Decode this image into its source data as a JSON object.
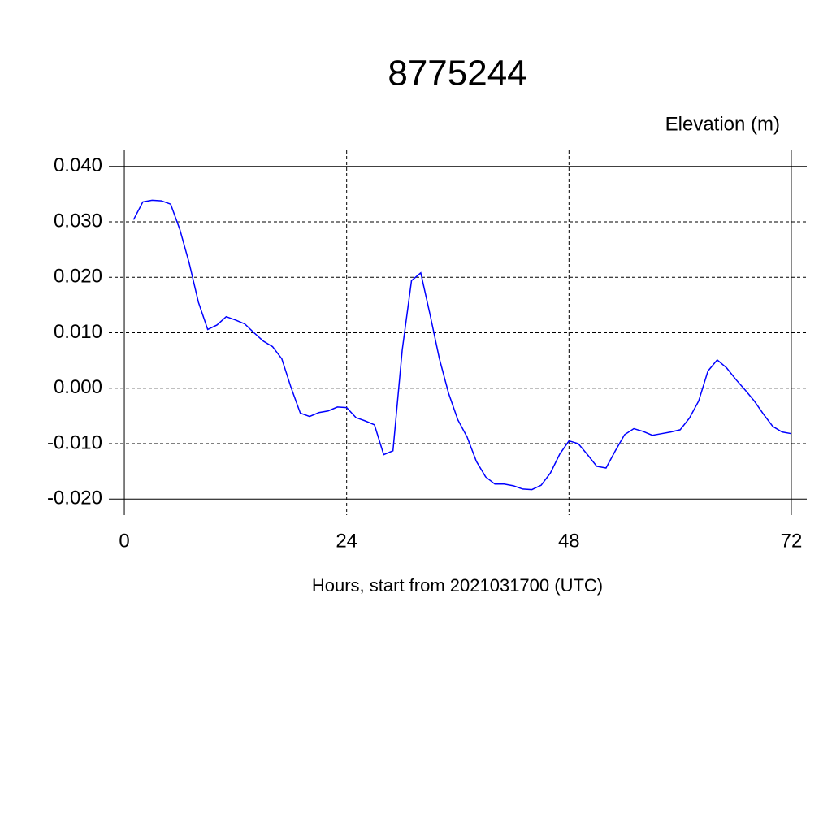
{
  "chart_data": {
    "type": "line",
    "title": "8775244",
    "ylabel": "Elevation (m)",
    "xlabel": "Hours, start from 2021031700 (UTC)",
    "x": [
      1,
      2,
      3,
      4,
      5,
      6,
      7,
      8,
      9,
      10,
      11,
      12,
      13,
      14,
      15,
      16,
      17,
      18,
      19,
      20,
      21,
      22,
      23,
      24,
      25,
      26,
      27,
      28,
      29,
      30,
      31,
      32,
      33,
      34,
      35,
      36,
      37,
      38,
      39,
      40,
      41,
      42,
      43,
      44,
      45,
      46,
      47,
      48,
      49,
      50,
      51,
      52,
      53,
      54,
      55,
      56,
      57,
      58,
      59,
      60,
      61,
      62,
      63,
      64,
      65,
      66,
      67,
      68,
      69,
      70,
      71,
      72
    ],
    "series": [
      {
        "name": "Elevation",
        "color": "#0000ff",
        "values": [
          0.0304,
          0.0336,
          0.0339,
          0.0338,
          0.0332,
          0.0286,
          0.0226,
          0.0155,
          0.0106,
          0.0114,
          0.0129,
          0.0123,
          0.0116,
          0.01,
          0.0085,
          0.0075,
          0.0053,
          0.0001,
          -0.0045,
          -0.0051,
          -0.0044,
          -0.0041,
          -0.0034,
          -0.0035,
          -0.0053,
          -0.0059,
          -0.0066,
          -0.012,
          -0.0113,
          0.0069,
          0.0194,
          0.0208,
          0.0133,
          0.0054,
          -0.0009,
          -0.0057,
          -0.0088,
          -0.0132,
          -0.016,
          -0.0173,
          -0.0173,
          -0.0176,
          -0.0182,
          -0.0183,
          -0.0175,
          -0.0153,
          -0.0119,
          -0.0095,
          -0.01,
          -0.012,
          -0.0141,
          -0.0144,
          -0.0113,
          -0.0084,
          -0.0073,
          -0.0078,
          -0.0085,
          -0.0082,
          -0.0079,
          -0.0075,
          -0.0054,
          -0.0023,
          0.0031,
          0.0051,
          0.0037,
          0.0016,
          -0.0003,
          -0.0023,
          -0.0047,
          -0.0069,
          -0.0079,
          -0.0082
        ]
      }
    ],
    "xlim": [
      -1.67,
      73.67
    ],
    "xticks": [
      0,
      24,
      48,
      72
    ],
    "ylim": [
      -0.0229,
      0.0429
    ],
    "yticks": [
      {
        "value": -0.02,
        "label": "-0.020"
      },
      {
        "value": -0.01,
        "label": "-0.010"
      },
      {
        "value": 0,
        "label": "0.000"
      },
      {
        "value": 0.01,
        "label": "0.010"
      },
      {
        "value": 0.02,
        "label": "0.020"
      },
      {
        "value": 0.03,
        "label": "0.030"
      },
      {
        "value": 0.04,
        "label": "0.040"
      }
    ],
    "grid": true
  }
}
